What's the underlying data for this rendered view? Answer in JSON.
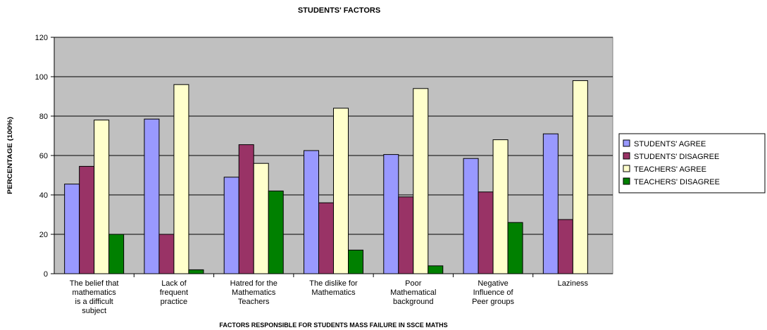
{
  "chart_data": {
    "type": "bar",
    "title": "STUDENTS' FACTORS",
    "xlabel": "FACTORS RESPONSIBLE FOR STUDENTS MASS FAILURE IN SSCE MATHS",
    "ylabel": "PERCENTAGE (100%)",
    "ylim": [
      0,
      120
    ],
    "yticks": [
      0,
      20,
      40,
      60,
      80,
      100,
      120
    ],
    "grid": true,
    "legend_position": "right",
    "categories": [
      [
        "The belief that",
        "mathematics",
        "is a difficult",
        "subject"
      ],
      [
        "Lack of",
        "frequent",
        "practice"
      ],
      [
        "Hatred for the",
        "Mathematics",
        "Teachers"
      ],
      [
        "The dislike for",
        "Mathematics"
      ],
      [
        "Poor",
        "Mathematical",
        "background"
      ],
      [
        "Negative",
        "Influence of",
        "Peer groups"
      ],
      [
        "Laziness"
      ]
    ],
    "series": [
      {
        "name": "STUDENTS' AGREE",
        "color": "#9999ff",
        "values": [
          45.5,
          78.5,
          49,
          62.5,
          60.5,
          58.5,
          71
        ]
      },
      {
        "name": "STUDENTS' DISAGREE",
        "color": "#993366",
        "values": [
          54.5,
          20,
          65.5,
          36,
          39,
          41.5,
          27.5
        ]
      },
      {
        "name": "TEACHERS' AGREE",
        "color": "#ffffcc",
        "values": [
          78,
          96,
          56,
          84,
          94,
          68,
          98
        ]
      },
      {
        "name": "TEACHERS' DISAGREE",
        "color": "#008000",
        "values": [
          20,
          2,
          42,
          12,
          4,
          26,
          0
        ]
      }
    ],
    "plot_background": "#c0c0c0"
  }
}
